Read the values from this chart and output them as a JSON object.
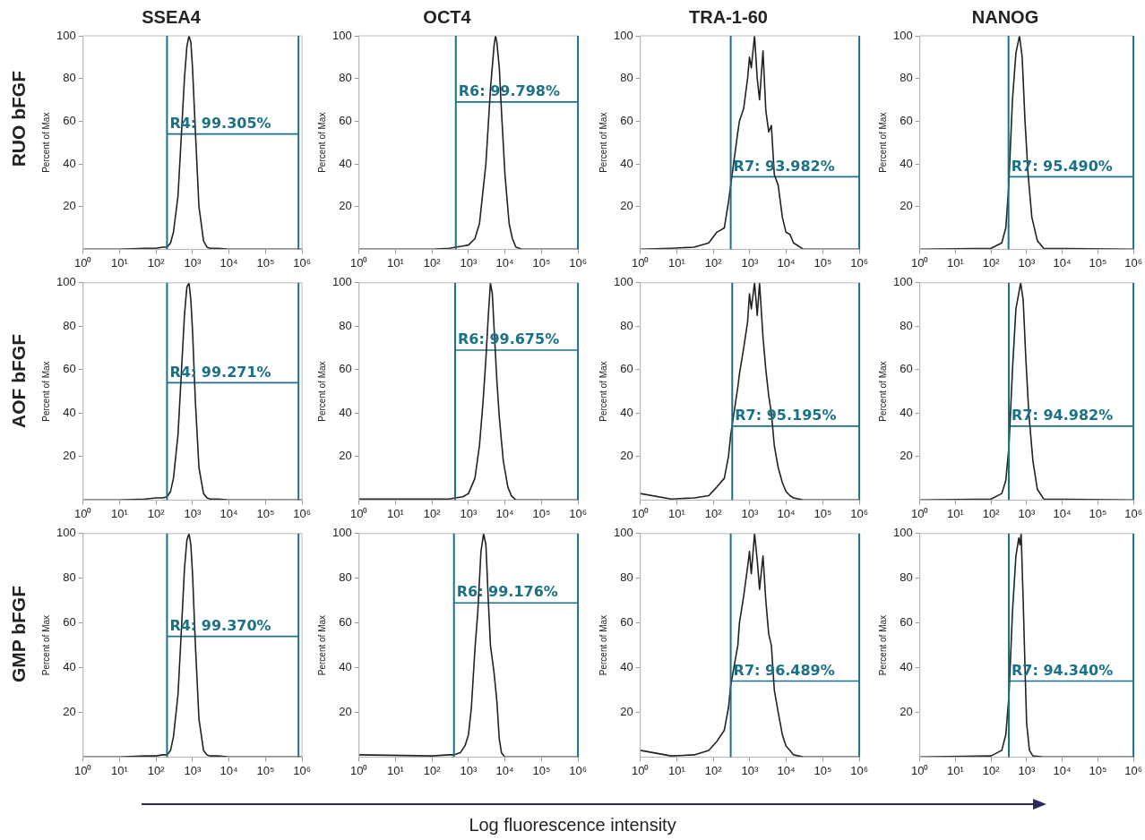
{
  "chart_data": [
    {
      "type": "line",
      "title": "SSEA4",
      "ylabel": "Percent of Max",
      "annotations": [
        "RUO bFGF",
        {
          "text": "R4: 99.305%",
          "x": 200,
          "y": 54
        }
      ],
      "log": "x",
      "marker": "none",
      "xlim": [
        1,
        1000000
      ],
      "xticks": [
        {
          "value": 1,
          "label": "10⁰"
        },
        {
          "value": 10,
          "label": "10¹"
        },
        {
          "value": 100,
          "label": "10²"
        },
        {
          "value": 1000,
          "label": "10³"
        },
        {
          "value": 10000,
          "label": "10⁴"
        },
        {
          "value": 100000,
          "label": "10⁵"
        },
        {
          "value": 1000000,
          "label": "10⁶"
        }
      ],
      "ylim": [
        0,
        100
      ],
      "yticks": [
        20,
        40,
        60,
        80,
        100
      ],
      "ref_lines": [
        {
          "axis": "x",
          "value": 200,
          "color": "#1b7187"
        },
        {
          "axis": "x",
          "value": 800000,
          "color": "#1b7187"
        }
      ],
      "series": [
        {
          "color": "#222222",
          "x": [
            1,
            10,
            50,
            100,
            150,
            200,
            250,
            300,
            400,
            500,
            600,
            700,
            800,
            900,
            1000,
            1200,
            1500,
            2000,
            2500,
            3000,
            5000,
            10000,
            50000,
            1000000
          ],
          "values": [
            0,
            0,
            0.5,
            0.5,
            1,
            1,
            3,
            8,
            25,
            55,
            80,
            95,
            100,
            97,
            85,
            55,
            20,
            4,
            1,
            0.5,
            0.5,
            0,
            0,
            0
          ]
        },
        {
          "color": "#1b7187",
          "x": [
            200,
            800000
          ],
          "values": [
            54,
            54
          ]
        }
      ]
    },
    {
      "type": "line",
      "title": "OCT4",
      "ylabel": "Percent of Max",
      "annotations": [
        {
          "text": "R6: 99.798%",
          "x": 450,
          "y": 69
        }
      ],
      "log": "x",
      "marker": "none",
      "xlim": [
        1,
        1000000
      ],
      "xticks": [
        {
          "value": 1,
          "label": "10⁰"
        },
        {
          "value": 10,
          "label": "10¹"
        },
        {
          "value": 100,
          "label": "10²"
        },
        {
          "value": 1000,
          "label": "10³"
        },
        {
          "value": 10000,
          "label": "10⁴"
        },
        {
          "value": 100000,
          "label": "10⁵"
        },
        {
          "value": 1000000,
          "label": "10⁶"
        }
      ],
      "ylim": [
        0,
        100
      ],
      "yticks": [
        20,
        40,
        60,
        80,
        100
      ],
      "ref_lines": [
        {
          "axis": "x",
          "value": 450,
          "color": "#1b7187"
        },
        {
          "axis": "x",
          "value": 1000000,
          "color": "#1b7187"
        }
      ],
      "series": [
        {
          "color": "#222222",
          "x": [
            1,
            100,
            300,
            450,
            700,
            1000,
            1500,
            2000,
            3000,
            4000,
            5000,
            5500,
            6000,
            7000,
            8000,
            10000,
            13000,
            16000,
            20000,
            30000,
            100000,
            1000000
          ],
          "values": [
            0,
            0,
            0.5,
            1,
            1.5,
            2,
            5,
            12,
            40,
            75,
            95,
            100,
            97,
            85,
            65,
            35,
            12,
            5,
            1,
            0,
            0,
            0
          ]
        },
        {
          "color": "#1b7187",
          "x": [
            450,
            1000000
          ],
          "values": [
            69,
            69
          ]
        }
      ]
    },
    {
      "type": "line",
      "title": "TRA-1-60",
      "ylabel": "Percent of Max",
      "annotations": [
        {
          "text": "R7: 93.982%",
          "x": 300,
          "y": 34
        }
      ],
      "log": "x",
      "marker": "none",
      "xlim": [
        1,
        1000000
      ],
      "xticks": [
        {
          "value": 1,
          "label": "10⁰"
        },
        {
          "value": 10,
          "label": "10¹"
        },
        {
          "value": 100,
          "label": "10²"
        },
        {
          "value": 1000,
          "label": "10³"
        },
        {
          "value": 10000,
          "label": "10⁴"
        },
        {
          "value": 100000,
          "label": "10⁵"
        },
        {
          "value": 1000000,
          "label": "10⁶"
        }
      ],
      "ylim": [
        0,
        100
      ],
      "yticks": [
        20,
        40,
        60,
        80,
        100
      ],
      "ref_lines": [
        {
          "axis": "x",
          "value": 300,
          "color": "#1b7187"
        },
        {
          "axis": "x",
          "value": 1000000,
          "color": "#1b7187"
        }
      ],
      "series": [
        {
          "color": "#222222",
          "x": [
            1,
            7,
            30,
            75,
            125,
            200,
            260,
            300,
            470,
            520,
            680,
            870,
            980,
            1100,
            1350,
            1600,
            1850,
            2300,
            2750,
            3300,
            3900,
            4700,
            6000,
            7800,
            9800,
            12600,
            15800,
            29500,
            1000000
          ],
          "values": [
            0,
            0.5,
            1,
            3,
            8,
            10,
            22,
            30,
            55,
            60,
            66,
            80,
            90,
            85,
            100,
            80,
            70,
            93,
            65,
            55,
            58,
            35,
            30,
            15,
            8,
            7,
            3,
            0,
            0
          ]
        },
        {
          "color": "#1b7187",
          "x": [
            300,
            1000000
          ],
          "values": [
            34,
            34
          ]
        }
      ]
    },
    {
      "type": "line",
      "title": "NANOG",
      "ylabel": "Percent of Max",
      "annotations": [
        {
          "text": "R7: 95.490%",
          "x": 310,
          "y": 34
        }
      ],
      "log": "x",
      "marker": "none",
      "xlim": [
        1,
        1000000
      ],
      "xticks": [
        {
          "value": 1,
          "label": "10⁰"
        },
        {
          "value": 10,
          "label": "10¹"
        },
        {
          "value": 100,
          "label": "10²"
        },
        {
          "value": 1000,
          "label": "10³"
        },
        {
          "value": 10000,
          "label": "10⁴"
        },
        {
          "value": 100000,
          "label": "10⁵"
        },
        {
          "value": 1000000,
          "label": "10⁶"
        }
      ],
      "ylim": [
        0,
        100
      ],
      "yticks": [
        20,
        40,
        60,
        80,
        100
      ],
      "ref_lines": [
        {
          "axis": "x",
          "value": 310,
          "color": "#1b7187"
        },
        {
          "axis": "x",
          "value": 1000000,
          "color": "#1b7187"
        }
      ],
      "series": [
        {
          "color": "#222222",
          "x": [
            1,
            100,
            200,
            260,
            310,
            400,
            500,
            630,
            750,
            900,
            1100,
            1400,
            2000,
            3000,
            1000000
          ],
          "values": [
            0,
            0.5,
            3,
            10,
            28,
            70,
            92,
            100,
            90,
            60,
            35,
            15,
            4,
            0.5,
            0
          ]
        },
        {
          "color": "#1b7187",
          "x": [
            310,
            1000000
          ],
          "values": [
            34,
            34
          ]
        }
      ]
    },
    {
      "type": "line",
      "ylabel": "Percent of Max",
      "annotations": [
        "AOF bFGF",
        {
          "text": "R4: 99.271%",
          "x": 200,
          "y": 54
        }
      ],
      "log": "x",
      "marker": "none",
      "xlim": [
        1,
        1000000
      ],
      "xticks": [
        {
          "value": 1,
          "label": "10⁰"
        },
        {
          "value": 10,
          "label": "10¹"
        },
        {
          "value": 100,
          "label": "10²"
        },
        {
          "value": 1000,
          "label": "10³"
        },
        {
          "value": 10000,
          "label": "10⁴"
        },
        {
          "value": 100000,
          "label": "10⁵"
        },
        {
          "value": 1000000,
          "label": "10⁶"
        }
      ],
      "ylim": [
        0,
        100
      ],
      "yticks": [
        20,
        40,
        60,
        80,
        100
      ],
      "ref_lines": [
        {
          "axis": "x",
          "value": 200,
          "color": "#1b7187"
        },
        {
          "axis": "x",
          "value": 800000,
          "color": "#1b7187"
        }
      ],
      "series": [
        {
          "color": "#222222",
          "x": [
            1,
            10,
            50,
            100,
            150,
            200,
            250,
            300,
            400,
            500,
            600,
            700,
            800,
            900,
            1000,
            1200,
            1500,
            2000,
            2500,
            3000,
            5000,
            10000,
            50000,
            1000000
          ],
          "values": [
            0,
            0,
            0.5,
            1,
            1,
            1.5,
            4,
            10,
            30,
            60,
            85,
            98,
            100,
            92,
            78,
            45,
            15,
            3,
            1,
            0.5,
            0.5,
            0,
            0,
            0
          ]
        },
        {
          "color": "#1b7187",
          "x": [
            200,
            800000
          ],
          "values": [
            54,
            54
          ]
        }
      ]
    },
    {
      "type": "line",
      "ylabel": "Percent of Max",
      "annotations": [
        {
          "text": "R6: 99.675%",
          "x": 430,
          "y": 69
        }
      ],
      "log": "x",
      "marker": "none",
      "xlim": [
        1,
        1000000
      ],
      "xticks": [
        {
          "value": 1,
          "label": "10⁰"
        },
        {
          "value": 10,
          "label": "10¹"
        },
        {
          "value": 100,
          "label": "10²"
        },
        {
          "value": 1000,
          "label": "10³"
        },
        {
          "value": 10000,
          "label": "10⁴"
        },
        {
          "value": 100000,
          "label": "10⁵"
        },
        {
          "value": 1000000,
          "label": "10⁶"
        }
      ],
      "ylim": [
        0,
        100
      ],
      "yticks": [
        20,
        40,
        60,
        80,
        100
      ],
      "ref_lines": [
        {
          "axis": "x",
          "value": 430,
          "color": "#1b7187"
        },
        {
          "axis": "x",
          "value": 1000000,
          "color": "#1b7187"
        }
      ],
      "series": [
        {
          "color": "#222222",
          "x": [
            1,
            100,
            300,
            430,
            700,
            1000,
            1500,
            2000,
            2500,
            3000,
            3500,
            4000,
            4500,
            5000,
            6000,
            7000,
            9000,
            12000,
            15000,
            20000,
            100000,
            1000000
          ],
          "values": [
            0.5,
            0.5,
            0.5,
            1,
            1.5,
            3,
            10,
            25,
            45,
            65,
            85,
            100,
            95,
            80,
            55,
            38,
            18,
            6,
            2,
            0,
            0,
            0
          ]
        },
        {
          "color": "#1b7187",
          "x": [
            430,
            1000000
          ],
          "values": [
            69,
            69
          ]
        }
      ]
    },
    {
      "type": "line",
      "ylabel": "Percent of Max",
      "annotations": [
        {
          "text": "R7: 95.195%",
          "x": 330,
          "y": 34
        }
      ],
      "log": "x",
      "marker": "none",
      "xlim": [
        1,
        1000000
      ],
      "xticks": [
        {
          "value": 1,
          "label": "10⁰"
        },
        {
          "value": 10,
          "label": "10¹"
        },
        {
          "value": 100,
          "label": "10²"
        },
        {
          "value": 1000,
          "label": "10³"
        },
        {
          "value": 10000,
          "label": "10⁴"
        },
        {
          "value": 100000,
          "label": "10⁵"
        },
        {
          "value": 1000000,
          "label": "10⁶"
        }
      ],
      "ylim": [
        0,
        100
      ],
      "yticks": [
        20,
        40,
        60,
        80,
        100
      ],
      "ref_lines": [
        {
          "axis": "x",
          "value": 330,
          "color": "#1b7187"
        },
        {
          "axis": "x",
          "value": 1000000,
          "color": "#1b7187"
        }
      ],
      "series": [
        {
          "color": "#222222",
          "x": [
            1,
            7,
            30,
            75,
            125,
            200,
            260,
            300,
            470,
            520,
            680,
            870,
            980,
            1100,
            1350,
            1600,
            1850,
            2300,
            2750,
            3300,
            3900,
            4700,
            6000,
            7800,
            9800,
            12600,
            15800,
            29500,
            1000000
          ],
          "values": [
            3,
            0.5,
            1,
            2,
            6,
            10,
            20,
            30,
            52,
            58,
            70,
            82,
            95,
            88,
            100,
            85,
            100,
            75,
            60,
            48,
            40,
            25,
            15,
            8,
            4,
            2,
            1,
            0,
            0
          ]
        },
        {
          "color": "#1b7187",
          "x": [
            330,
            1000000
          ],
          "values": [
            34,
            34
          ]
        }
      ]
    },
    {
      "type": "line",
      "ylabel": "Percent of Max",
      "annotations": [
        {
          "text": "R7: 94.982%",
          "x": 316,
          "y": 34
        }
      ],
      "log": "x",
      "marker": "none",
      "xlim": [
        1,
        1000000
      ],
      "xticks": [
        {
          "value": 1,
          "label": "10⁰"
        },
        {
          "value": 10,
          "label": "10¹"
        },
        {
          "value": 100,
          "label": "10²"
        },
        {
          "value": 1000,
          "label": "10³"
        },
        {
          "value": 10000,
          "label": "10⁴"
        },
        {
          "value": 100000,
          "label": "10⁵"
        },
        {
          "value": 1000000,
          "label": "10⁶"
        }
      ],
      "ylim": [
        0,
        100
      ],
      "yticks": [
        20,
        40,
        60,
        80,
        100
      ],
      "ref_lines": [
        {
          "axis": "x",
          "value": 316,
          "color": "#1b7187"
        },
        {
          "axis": "x",
          "value": 1000000,
          "color": "#1b7187"
        }
      ],
      "series": [
        {
          "color": "#222222",
          "x": [
            1,
            100,
            200,
            260,
            320,
            400,
            500,
            680,
            800,
            950,
            1150,
            1500,
            2000,
            3000,
            1000000
          ],
          "values": [
            0,
            0.5,
            3,
            9,
            25,
            60,
            88,
            100,
            92,
            65,
            40,
            18,
            5,
            0.5,
            0
          ]
        },
        {
          "color": "#1b7187",
          "x": [
            316,
            1000000
          ],
          "values": [
            34,
            34
          ]
        }
      ]
    },
    {
      "type": "line",
      "ylabel": "Percent of Max",
      "annotations": [
        "GMP bFGF",
        {
          "text": "R4: 99.370%",
          "x": 200,
          "y": 54
        }
      ],
      "log": "x",
      "marker": "none",
      "xlim": [
        1,
        1000000
      ],
      "xticks": [
        {
          "value": 1,
          "label": "10⁰"
        },
        {
          "value": 10,
          "label": "10¹"
        },
        {
          "value": 100,
          "label": "10²"
        },
        {
          "value": 1000,
          "label": "10³"
        },
        {
          "value": 10000,
          "label": "10⁴"
        },
        {
          "value": 100000,
          "label": "10⁵"
        },
        {
          "value": 1000000,
          "label": "10⁶"
        }
      ],
      "ylim": [
        0,
        100
      ],
      "yticks": [
        20,
        40,
        60,
        80,
        100
      ],
      "ref_lines": [
        {
          "axis": "x",
          "value": 200,
          "color": "#1b7187"
        },
        {
          "axis": "x",
          "value": 800000,
          "color": "#1b7187"
        }
      ],
      "series": [
        {
          "color": "#222222",
          "x": [
            1,
            10,
            50,
            100,
            150,
            200,
            250,
            300,
            400,
            500,
            600,
            700,
            800,
            900,
            1000,
            1200,
            1500,
            2000,
            2500,
            3000,
            5000,
            10000,
            50000,
            1000000
          ],
          "values": [
            0,
            0,
            0.5,
            0.5,
            1,
            1,
            3,
            9,
            28,
            58,
            84,
            97,
            100,
            95,
            82,
            50,
            17,
            3,
            1,
            0.5,
            0.5,
            0,
            0,
            0
          ]
        },
        {
          "color": "#1b7187",
          "x": [
            200,
            800000
          ],
          "values": [
            54,
            54
          ]
        }
      ]
    },
    {
      "type": "line",
      "ylabel": "Percent of Max",
      "annotations": [
        {
          "text": "R6: 99.176%",
          "x": 400,
          "y": 69
        }
      ],
      "log": "x",
      "marker": "none",
      "xlim": [
        1,
        1000000
      ],
      "xticks": [
        {
          "value": 1,
          "label": "10⁰"
        },
        {
          "value": 10,
          "label": "10¹"
        },
        {
          "value": 100,
          "label": "10²"
        },
        {
          "value": 1000,
          "label": "10³"
        },
        {
          "value": 10000,
          "label": "10⁴"
        },
        {
          "value": 100000,
          "label": "10⁵"
        },
        {
          "value": 1000000,
          "label": "10⁶"
        }
      ],
      "ylim": [
        0,
        100
      ],
      "yticks": [
        20,
        40,
        60,
        80,
        100
      ],
      "ref_lines": [
        {
          "axis": "x",
          "value": 400,
          "color": "#1b7187"
        },
        {
          "axis": "x",
          "value": 1000000,
          "color": "#1b7187"
        }
      ],
      "series": [
        {
          "color": "#222222",
          "x": [
            1,
            100,
            300,
            400,
            600,
            800,
            1000,
            1200,
            1500,
            1800,
            2200,
            2600,
            3000,
            3500,
            4000,
            5000,
            6000,
            7000,
            8000,
            10000,
            100000,
            1000000
          ],
          "values": [
            1,
            0.5,
            1,
            1,
            2,
            5,
            10,
            22,
            48,
            65,
            92,
            100,
            95,
            70,
            50,
            38,
            25,
            8,
            2,
            0,
            0,
            0
          ]
        },
        {
          "color": "#1b7187",
          "x": [
            400,
            1000000
          ],
          "values": [
            69,
            69
          ]
        }
      ]
    },
    {
      "type": "line",
      "ylabel": "Percent of Max",
      "annotations": [
        {
          "text": "R7: 96.489%",
          "x": 300,
          "y": 34
        }
      ],
      "log": "x",
      "marker": "none",
      "xlim": [
        1,
        1000000
      ],
      "xticks": [
        {
          "value": 1,
          "label": "10⁰"
        },
        {
          "value": 10,
          "label": "10¹"
        },
        {
          "value": 100,
          "label": "10²"
        },
        {
          "value": 1000,
          "label": "10³"
        },
        {
          "value": 10000,
          "label": "10⁴"
        },
        {
          "value": 100000,
          "label": "10⁵"
        },
        {
          "value": 1000000,
          "label": "10⁶"
        }
      ],
      "ylim": [
        0,
        100
      ],
      "yticks": [
        20,
        40,
        60,
        80,
        100
      ],
      "ref_lines": [
        {
          "axis": "x",
          "value": 300,
          "color": "#1b7187"
        },
        {
          "axis": "x",
          "value": 1000000,
          "color": "#1b7187"
        }
      ],
      "series": [
        {
          "color": "#222222",
          "x": [
            1,
            7,
            30,
            75,
            125,
            200,
            260,
            300,
            470,
            520,
            680,
            870,
            980,
            1100,
            1350,
            1600,
            1850,
            2300,
            2750,
            3300,
            3900,
            4700,
            6000,
            7800,
            9800,
            12600,
            15800,
            29500,
            1000000
          ],
          "values": [
            3,
            0.5,
            1,
            3,
            7,
            12,
            22,
            32,
            50,
            60,
            72,
            85,
            92,
            82,
            100,
            88,
            75,
            90,
            70,
            55,
            50,
            30,
            20,
            10,
            5,
            3,
            1,
            0,
            0
          ]
        },
        {
          "color": "#1b7187",
          "x": [
            300,
            1000000
          ],
          "values": [
            34,
            34
          ]
        }
      ]
    },
    {
      "type": "line",
      "ylabel": "Percent of Max",
      "annotations": [
        {
          "text": "R7: 94.340%",
          "x": 316,
          "y": 34
        }
      ],
      "log": "x",
      "marker": "none",
      "xlim": [
        1,
        1000000
      ],
      "xticks": [
        {
          "value": 1,
          "label": "10⁰"
        },
        {
          "value": 10,
          "label": "10¹"
        },
        {
          "value": 100,
          "label": "10²"
        },
        {
          "value": 1000,
          "label": "10³"
        },
        {
          "value": 10000,
          "label": "10⁴"
        },
        {
          "value": 100000,
          "label": "10⁵"
        },
        {
          "value": 1000000,
          "label": "10⁶"
        }
      ],
      "ylim": [
        0,
        100
      ],
      "yticks": [
        20,
        40,
        60,
        80,
        100
      ],
      "ref_lines": [
        {
          "axis": "x",
          "value": 316,
          "color": "#1b7187"
        },
        {
          "axis": "x",
          "value": 1000000,
          "color": "#1b7187"
        }
      ],
      "series": [
        {
          "color": "#222222",
          "x": [
            1,
            100,
            200,
            260,
            320,
            400,
            500,
            600,
            650,
            700,
            800,
            900,
            1000,
            1200,
            1500,
            3000,
            1000000
          ],
          "values": [
            0,
            0.5,
            3,
            10,
            28,
            65,
            90,
            98,
            95,
            100,
            70,
            40,
            15,
            3,
            0.5,
            0,
            0
          ]
        },
        {
          "color": "#1b7187",
          "x": [
            316,
            1000000
          ],
          "values": [
            34,
            34
          ]
        }
      ]
    },
    {
      "type": "other",
      "xlabel": "Log fluorescence intensity"
    }
  ]
}
